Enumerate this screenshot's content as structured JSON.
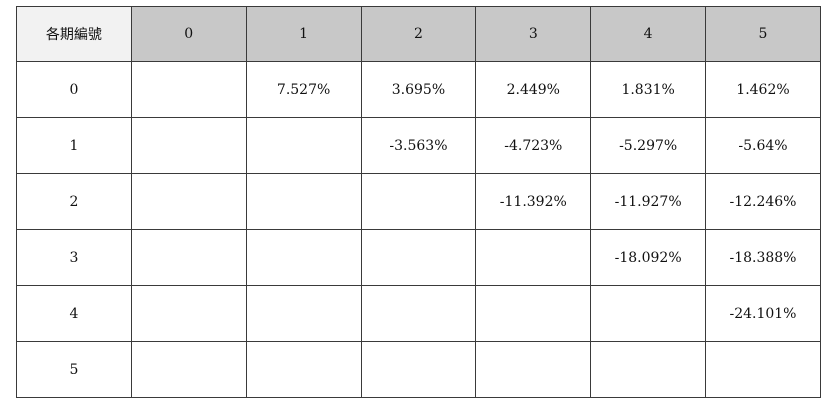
{
  "table": {
    "corner_label": "各期編號",
    "column_headers": [
      "0",
      "1",
      "2",
      "3",
      "4",
      "5"
    ],
    "rows": [
      {
        "label": "0",
        "cells": [
          "",
          "7.527%",
          "3.695%",
          "2.449%",
          "1.831%",
          "1.462%"
        ]
      },
      {
        "label": "1",
        "cells": [
          "",
          "",
          "-3.563%",
          "-4.723%",
          "-5.297%",
          "-5.64%"
        ]
      },
      {
        "label": "2",
        "cells": [
          "",
          "",
          "",
          "-11.392%",
          "-11.927%",
          "-12.246%"
        ]
      },
      {
        "label": "3",
        "cells": [
          "",
          "",
          "",
          "",
          "-18.092%",
          "-18.388%"
        ]
      },
      {
        "label": "4",
        "cells": [
          "",
          "",
          "",
          "",
          "",
          "-24.101%"
        ]
      },
      {
        "label": "5",
        "cells": [
          "",
          "",
          "",
          "",
          "",
          ""
        ]
      }
    ]
  },
  "colors": {
    "header_background": "#c8c8c8",
    "corner_background": "#f2f2f2",
    "border": "#3a3a3a"
  }
}
